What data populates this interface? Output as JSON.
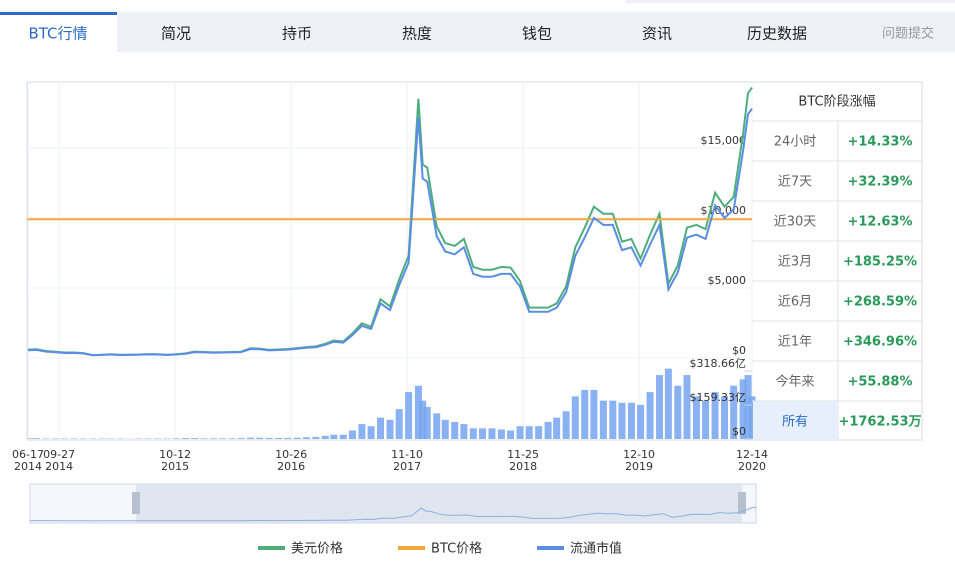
{
  "tabs": [
    "BTC行情",
    "简况",
    "持币",
    "热度",
    "钱包",
    "资讯",
    "历史数据"
  ],
  "feedback": "问题提交",
  "chart_data": {
    "type": "line",
    "x": [
      "2014-06-17",
      "2014-07-15",
      "2014-08-15",
      "2014-09-15",
      "2014-10-15",
      "2014-11-15",
      "2014-12-15",
      "2015-01-15",
      "2015-02-15",
      "2015-03-15",
      "2015-04-15",
      "2015-05-15",
      "2015-06-15",
      "2015-07-15",
      "2015-08-15",
      "2015-09-15",
      "2015-10-15",
      "2015-11-15",
      "2015-12-15",
      "2016-01-15",
      "2016-02-15",
      "2016-03-15",
      "2016-04-15",
      "2016-05-15",
      "2016-06-15",
      "2016-07-15",
      "2016-08-15",
      "2016-09-15",
      "2016-10-15",
      "2016-11-15",
      "2016-12-15",
      "2017-01-15",
      "2017-02-15",
      "2017-03-15",
      "2017-04-15",
      "2017-05-15",
      "2017-06-15",
      "2017-07-15",
      "2017-08-15",
      "2017-09-15",
      "2017-10-15",
      "2017-11-15",
      "2017-12-17",
      "2017-12-31",
      "2018-01-15",
      "2018-02-15",
      "2018-03-15",
      "2018-04-15",
      "2018-05-15",
      "2018-06-15",
      "2018-07-15",
      "2018-08-15",
      "2018-09-15",
      "2018-10-15",
      "2018-11-15",
      "2018-12-15",
      "2019-01-15",
      "2019-02-15",
      "2019-03-15",
      "2019-04-15",
      "2019-05-15",
      "2019-06-15",
      "2019-07-15",
      "2019-08-15",
      "2019-09-15",
      "2019-10-15",
      "2019-11-15",
      "2019-12-15",
      "2020-01-15",
      "2020-02-15",
      "2020-03-15",
      "2020-04-15",
      "2020-05-15",
      "2020-06-15",
      "2020-07-15",
      "2020-08-15",
      "2020-09-15",
      "2020-10-15",
      "2020-11-15",
      "2020-12-01",
      "2020-12-14"
    ],
    "xlim": [
      "2014-06-17",
      "2020-12-14"
    ],
    "xticks": [
      {
        "value": "2014-06-17",
        "label": [
          "06-17",
          "2014"
        ]
      },
      {
        "value": "2014-09-27",
        "label": [
          "09-27",
          "2014"
        ]
      },
      {
        "value": "2015-10-12",
        "label": [
          "10-12",
          "2015"
        ]
      },
      {
        "value": "2016-10-26",
        "label": [
          "10-26",
          "2016"
        ]
      },
      {
        "value": "2017-11-10",
        "label": [
          "11-10",
          "2017"
        ]
      },
      {
        "value": "2018-11-25",
        "label": [
          "11-25",
          "2018"
        ]
      },
      {
        "value": "2019-12-10",
        "label": [
          "12-10",
          "2019"
        ]
      },
      {
        "value": "2020-12-14",
        "label": [
          "12-14",
          "2020"
        ]
      }
    ],
    "ylim": [
      0,
      19700
    ],
    "yticks": [
      {
        "value": 0,
        "label": "$0"
      },
      {
        "value": 5000,
        "label": "$5,000"
      },
      {
        "value": 10000,
        "label": "$10,000"
      },
      {
        "value": 15000,
        "label": "$15,000"
      }
    ],
    "y2lim": [
      0,
      380
    ],
    "y2ticks": [
      {
        "value": 0,
        "label": "$0"
      },
      {
        "value": 159.33,
        "label": "$159.33亿"
      },
      {
        "value": 318.66,
        "label": "$318.66亿"
      }
    ],
    "grid": true,
    "series": [
      {
        "name": "美元价格",
        "color": "#4dae7b",
        "values": [
          600,
          620,
          500,
          440,
          390,
          390,
          350,
          210,
          235,
          270,
          225,
          237,
          250,
          280,
          265,
          230,
          265,
          330,
          455,
          430,
          400,
          415,
          425,
          450,
          690,
          670,
          580,
          610,
          640,
          710,
          780,
          830,
          1010,
          1250,
          1180,
          1760,
          2480,
          2230,
          4200,
          3680,
          5600,
          7300,
          18500,
          13800,
          13600,
          9400,
          8200,
          8000,
          8500,
          6500,
          6300,
          6300,
          6500,
          6450,
          5500,
          3600,
          3600,
          3600,
          3900,
          5100,
          7900,
          9300,
          10800,
          10300,
          10300,
          8300,
          8500,
          7100,
          8800,
          10300,
          5300,
          6600,
          9300,
          9500,
          9200,
          11800,
          10800,
          11500,
          16000,
          18900,
          19300
        ]
      },
      {
        "name": "BTC价格",
        "color": "#f2a93b",
        "y": 9900
      },
      {
        "name": "流通市值",
        "color": "#5a8de5",
        "values": [
          560,
          580,
          460,
          410,
          360,
          360,
          330,
          200,
          220,
          250,
          210,
          220,
          235,
          260,
          250,
          215,
          250,
          310,
          420,
          400,
          375,
          390,
          400,
          420,
          640,
          625,
          540,
          570,
          600,
          660,
          730,
          770,
          940,
          1160,
          1100,
          1640,
          2300,
          2070,
          3900,
          3420,
          5200,
          6800,
          17200,
          12800,
          12600,
          8700,
          7600,
          7400,
          7900,
          6000,
          5800,
          5800,
          6000,
          6000,
          5100,
          3300,
          3300,
          3300,
          3600,
          4700,
          7300,
          8600,
          10000,
          9500,
          9500,
          7700,
          7900,
          6600,
          8100,
          9500,
          4900,
          6100,
          8600,
          8800,
          8500,
          10900,
          10000,
          10600,
          14800,
          17400,
          17800
        ]
      }
    ],
    "volume": {
      "axis": "y2",
      "color": "#76a4f0",
      "values": [
        3,
        3,
        2,
        2,
        2,
        2,
        2,
        2,
        2,
        2,
        2,
        1,
        2,
        2,
        2,
        2,
        3,
        4,
        4,
        3,
        3,
        3,
        3,
        4,
        6,
        6,
        5,
        5,
        5,
        6,
        8,
        10,
        15,
        20,
        20,
        40,
        70,
        60,
        100,
        90,
        140,
        220,
        250,
        180,
        150,
        120,
        90,
        80,
        70,
        50,
        50,
        50,
        45,
        40,
        60,
        60,
        60,
        80,
        100,
        130,
        200,
        230,
        230,
        180,
        180,
        170,
        170,
        160,
        220,
        300,
        330,
        250,
        300,
        200,
        180,
        220,
        200,
        250,
        280,
        300,
        200
      ]
    }
  },
  "stats": {
    "title": "BTC阶段涨幅",
    "rows": [
      {
        "period": "24小时",
        "change": "+14.33%"
      },
      {
        "period": "近7天",
        "change": "+32.39%"
      },
      {
        "period": "近30天",
        "change": "+12.63%"
      },
      {
        "period": "近3月",
        "change": "+185.25%"
      },
      {
        "period": "近6月",
        "change": "+268.59%"
      },
      {
        "period": "近1年",
        "change": "+346.96%"
      },
      {
        "period": "今年来",
        "change": "+55.88%"
      },
      {
        "period": "所有",
        "change": "+1762.53万"
      }
    ]
  }
}
